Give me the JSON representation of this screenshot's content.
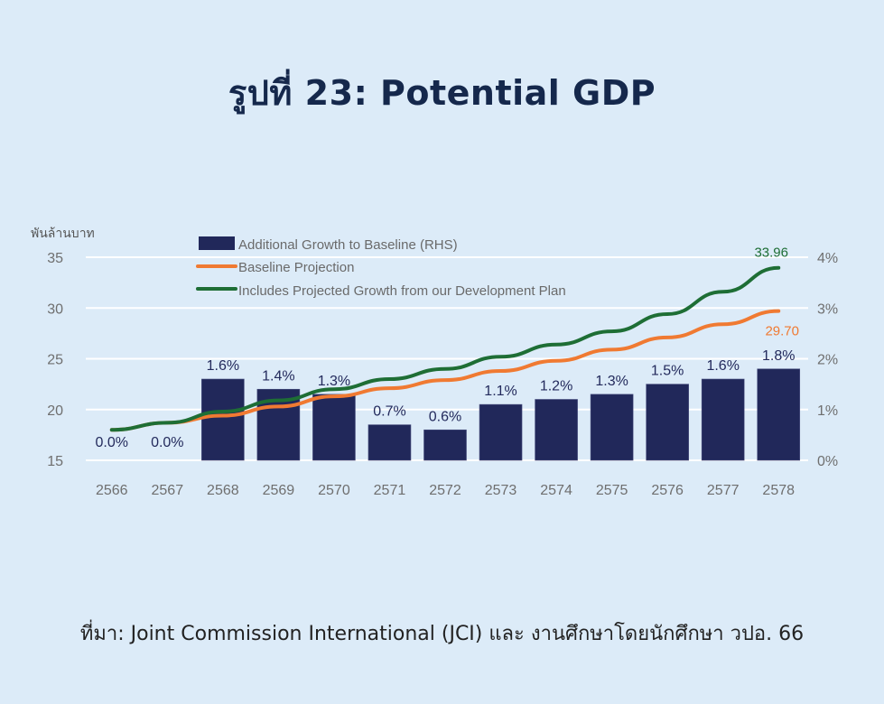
{
  "page": {
    "title": "รูปที่ 23: Potential GDP",
    "source": "ที่มา: Joint Commission International (JCI) และ งานศึกษาโดยนักศึกษา วปอ. 66"
  },
  "colors": {
    "background": "#dcebf8",
    "bar": "#21285a",
    "baseline": "#f07a32",
    "development": "#1e6e35",
    "title": "#15284c",
    "gridline": "#ffffff"
  },
  "chart_data": {
    "type": "bar+line",
    "title": "Potential GDP",
    "left_axis_unit": "พันล้านบาท",
    "categories": [
      "2566",
      "2567",
      "2568",
      "2569",
      "2570",
      "2571",
      "2572",
      "2573",
      "2574",
      "2575",
      "2576",
      "2577",
      "2578"
    ],
    "left_axis": {
      "ylim": [
        15,
        35
      ],
      "ticks": [
        "15",
        "20",
        "25",
        "30",
        "35"
      ]
    },
    "right_axis": {
      "ylim": [
        0,
        4
      ],
      "ticks": [
        "0%",
        "1%",
        "2%",
        "3%",
        "4%"
      ]
    },
    "grid": true,
    "legend_position": "top-left",
    "series": [
      {
        "name": "Additional Growth to Baseline (RHS)",
        "type": "bar",
        "axis": "right",
        "color": "#21285a",
        "values": [
          0.0,
          0.0,
          1.6,
          1.4,
          1.3,
          0.7,
          0.6,
          1.1,
          1.2,
          1.3,
          1.5,
          1.6,
          1.8
        ],
        "labels": [
          "0.0%",
          "0.0%",
          "1.6%",
          "1.4%",
          "1.3%",
          "0.7%",
          "0.6%",
          "1.1%",
          "1.2%",
          "1.3%",
          "1.5%",
          "1.6%",
          "1.8%"
        ]
      },
      {
        "name": "Baseline Projection",
        "type": "line",
        "axis": "left",
        "color": "#f07a32",
        "values": [
          18.0,
          18.7,
          19.4,
          20.3,
          21.3,
          22.1,
          22.9,
          23.8,
          24.8,
          25.9,
          27.1,
          28.4,
          29.7
        ],
        "end_label": "29.70"
      },
      {
        "name": "Includes Projected Growth from our Development Plan",
        "type": "line",
        "axis": "left",
        "color": "#1e6e35",
        "values": [
          18.0,
          18.7,
          19.8,
          20.9,
          22.0,
          23.0,
          24.0,
          25.2,
          26.4,
          27.7,
          29.4,
          31.6,
          33.96
        ],
        "end_label": "33.96"
      }
    ]
  }
}
